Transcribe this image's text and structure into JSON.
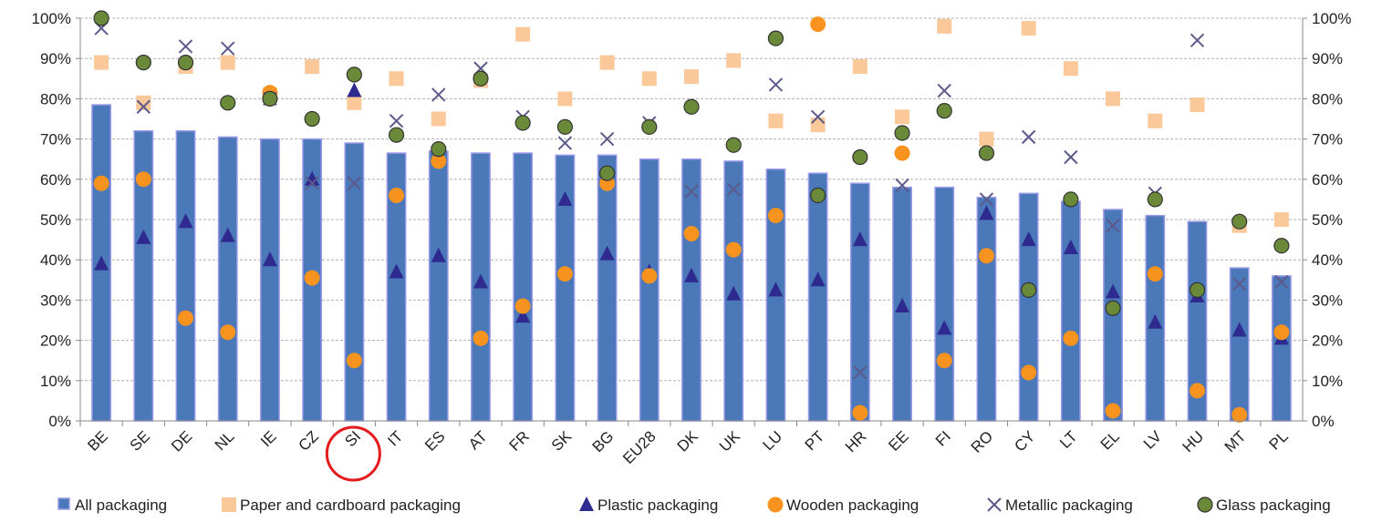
{
  "chart_data": {
    "type": "bar",
    "categories": [
      "BE",
      "SE",
      "DE",
      "NL",
      "IE",
      "CZ",
      "SI",
      "IT",
      "ES",
      "AT",
      "FR",
      "SK",
      "BG",
      "EU28",
      "DK",
      "UK",
      "LU",
      "PT",
      "HR",
      "EE",
      "FI",
      "RO",
      "CY",
      "LT",
      "EL",
      "LV",
      "HU",
      "MT",
      "PL"
    ],
    "y_ticks": [
      "0%",
      "10%",
      "20%",
      "30%",
      "40%",
      "50%",
      "60%",
      "70%",
      "80%",
      "90%",
      "100%"
    ],
    "ylim": [
      0,
      100
    ],
    "grid": true,
    "legend_position": "bottom",
    "highlighted_category": "SI",
    "series": [
      {
        "name": "All packaging",
        "kind": "bar",
        "color": "#4a78b8",
        "values": [
          78.5,
          72,
          72,
          70.5,
          70,
          70,
          69,
          66.5,
          67,
          66.5,
          66.5,
          66,
          66,
          65,
          65,
          64.5,
          62.5,
          61.5,
          59,
          58,
          58,
          55.5,
          56.5,
          54.5,
          52.5,
          51,
          49.5,
          38,
          36
        ]
      },
      {
        "name": "Paper and cardboard packaging",
        "kind": "square",
        "color": "#fbc89a",
        "values": [
          89,
          79,
          88,
          89,
          81,
          88,
          79,
          85,
          75,
          84.5,
          96,
          80,
          89,
          85,
          85.5,
          89.5,
          74.5,
          73.5,
          88,
          75.5,
          98,
          70,
          97.5,
          87.5,
          80,
          74.5,
          78.5,
          48.5,
          50
        ]
      },
      {
        "name": "Plastic packaging",
        "kind": "triangle",
        "color": "#2e2a8f",
        "values": [
          39,
          45.5,
          49.5,
          46,
          40,
          60,
          82,
          37,
          41,
          34.5,
          26,
          55,
          41.5,
          37,
          36,
          31.5,
          32.5,
          35,
          45,
          28.5,
          23,
          51.5,
          45,
          43,
          32,
          24.5,
          31,
          22.5,
          20.5
        ]
      },
      {
        "name": "Wooden packaging",
        "kind": "circle",
        "color": "#f7931e",
        "values": [
          59,
          60,
          25.5,
          22,
          81.5,
          35.5,
          15,
          56,
          64.5,
          20.5,
          28.5,
          36.5,
          59,
          36,
          46.5,
          42.5,
          51,
          98.5,
          2,
          66.5,
          15,
          41,
          12,
          20.5,
          2.5,
          36.5,
          7.5,
          1.5,
          22
        ]
      },
      {
        "name": "Metallic packaging",
        "kind": "x",
        "color": "#5c5a8a",
        "values": [
          97.5,
          78,
          93,
          92.5,
          80,
          59,
          59,
          74.5,
          81,
          87.5,
          75.5,
          69,
          70,
          74,
          57,
          57.5,
          83.5,
          75.5,
          12,
          58.5,
          82,
          55,
          70.5,
          65.5,
          48.5,
          56.5,
          94.5,
          34,
          34.5
        ]
      },
      {
        "name": "Glass packaging",
        "kind": "dot",
        "color": "#6a8a3a",
        "values": [
          100,
          89,
          89,
          79,
          80,
          75,
          86,
          71,
          67.5,
          85,
          74,
          73,
          61.5,
          73,
          78,
          68.5,
          95,
          56,
          65.5,
          71.5,
          77,
          66.5,
          32.5,
          55,
          28,
          55,
          32.5,
          49.5,
          43.5
        ]
      }
    ]
  }
}
